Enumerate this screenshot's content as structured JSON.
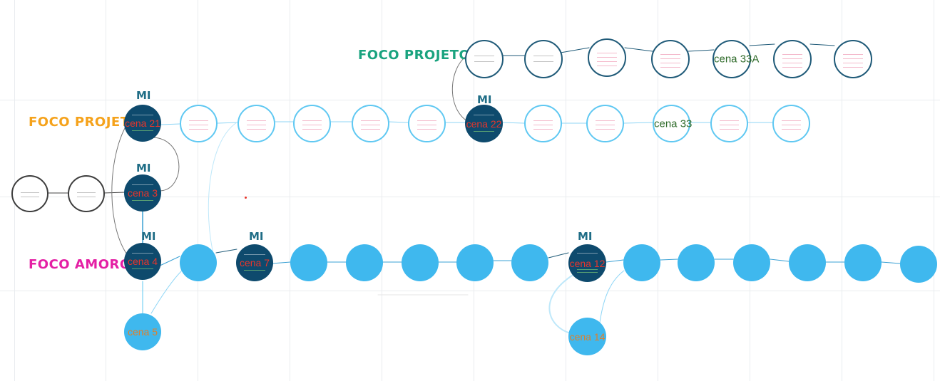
{
  "tracks": {
    "foco_projeto_a": {
      "label": "FOCO PROJETO A",
      "color": "#1aa37f"
    },
    "foco_projeto": {
      "label": "FOCO PROJETO",
      "color": "#f5a21b"
    },
    "foco_amoroso": {
      "label": "FOCO AMOROSO",
      "color": "#e41fa4"
    }
  },
  "mi_label": "MI",
  "mi_color": "#1f6d86",
  "scenes": {
    "cena_21": "cena 21",
    "cena_3": "cena 3",
    "cena_4": "cena 4",
    "cena_5": "cena 5",
    "cena_7": "cena 7",
    "cena_22": "cena 22",
    "cena_12": "cena 12",
    "cena_14": "cena 14",
    "cena_33": "cena 33",
    "cena_33a": "cena 33A"
  },
  "colors": {
    "navy_node": "#0e4a6d",
    "cyan_node": "#3fb8ee",
    "cyan_outline": "#5fc8f2",
    "teal_outline": "#1f5a78",
    "gray_outline": "#3d3d3d",
    "scene_red": "#e8352b",
    "scene_green": "#2f6b2a",
    "scene_orange": "#e07f2a"
  }
}
